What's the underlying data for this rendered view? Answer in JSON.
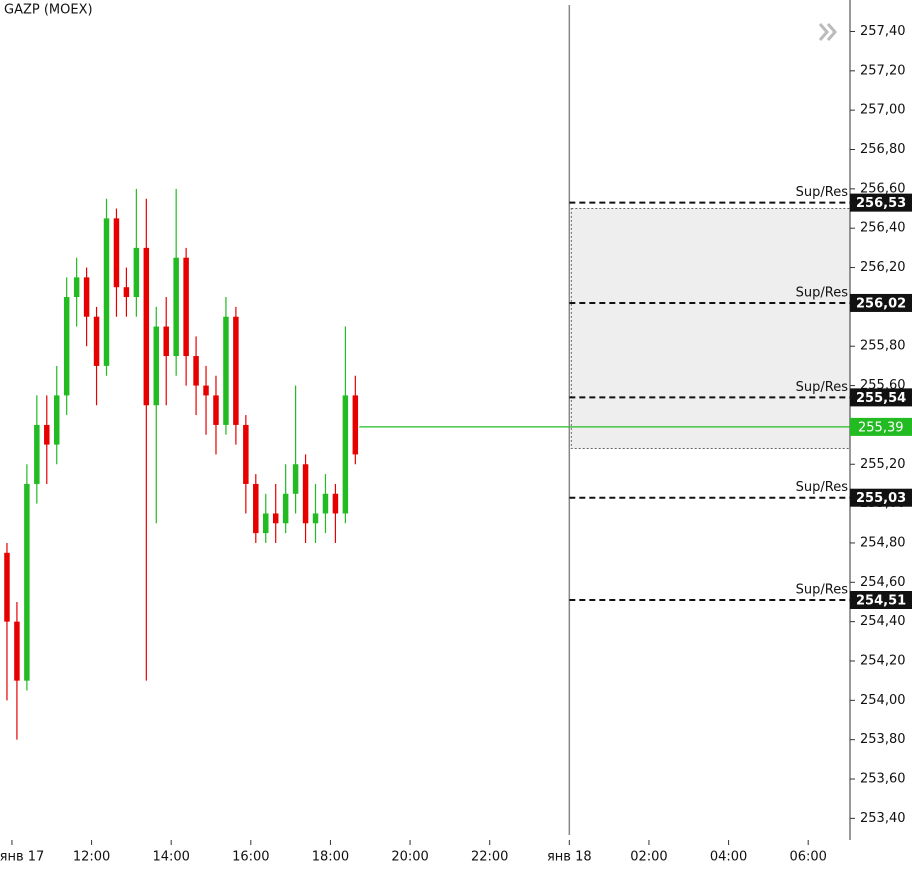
{
  "chart_data": {
    "type": "candlestick",
    "title": "GAZP (MOEX)",
    "x": [
      9.875,
      10.125,
      10.375,
      10.625,
      10.875,
      11.125,
      11.375,
      11.625,
      11.875,
      12.125,
      12.375,
      12.625,
      12.875,
      13.125,
      13.375,
      13.625,
      13.875,
      14.125,
      14.375,
      14.625,
      14.875,
      15.125,
      15.375,
      15.625,
      15.875,
      16.125,
      16.375,
      16.625,
      16.875,
      17.125,
      17.375,
      17.625,
      17.875,
      18.125,
      18.375,
      18.625
    ],
    "open": [
      254.75,
      254.4,
      254.1,
      255.1,
      255.4,
      255.3,
      255.55,
      256.05,
      256.15,
      255.95,
      255.7,
      256.45,
      256.1,
      256.05,
      256.3,
      255.5,
      255.9,
      255.75,
      256.25,
      255.75,
      255.6,
      255.55,
      255.4,
      255.95,
      255.4,
      255.1,
      254.85,
      254.95,
      254.9,
      255.05,
      255.2,
      254.9,
      254.95,
      255.05,
      254.95,
      255.55
    ],
    "high": [
      254.8,
      254.5,
      255.2,
      255.55,
      255.55,
      255.7,
      256.15,
      256.25,
      256.2,
      256.0,
      256.55,
      256.5,
      256.2,
      256.6,
      256.55,
      256.0,
      256.05,
      256.6,
      256.3,
      255.85,
      255.7,
      255.65,
      256.05,
      256.0,
      255.45,
      255.15,
      255.05,
      255.1,
      255.2,
      255.6,
      255.25,
      255.1,
      255.15,
      255.1,
      255.9,
      255.65
    ],
    "low": [
      254.0,
      253.8,
      254.05,
      255.0,
      255.1,
      255.2,
      255.45,
      255.9,
      255.8,
      255.5,
      255.65,
      255.95,
      255.95,
      255.95,
      254.1,
      254.9,
      255.5,
      255.65,
      255.6,
      255.45,
      255.35,
      255.25,
      255.35,
      255.3,
      254.95,
      254.8,
      254.8,
      254.8,
      254.85,
      254.95,
      254.8,
      254.8,
      254.85,
      254.8,
      254.9,
      255.2
    ],
    "close": [
      254.4,
      254.1,
      255.1,
      255.4,
      255.3,
      255.55,
      256.05,
      256.15,
      255.95,
      255.7,
      256.45,
      256.1,
      256.05,
      256.3,
      255.5,
      255.9,
      255.75,
      256.25,
      255.75,
      255.6,
      255.55,
      255.4,
      255.95,
      255.4,
      255.1,
      254.85,
      254.95,
      254.9,
      255.05,
      255.2,
      254.9,
      254.95,
      255.05,
      254.95,
      255.55,
      255.25
    ],
    "up_color": "#22bb22",
    "down_color": "#e60000",
    "xlim": [
      9.7,
      31.05
    ],
    "ylim": [
      253.29,
      257.56
    ],
    "xticks": [
      {
        "value": 10,
        "label": "янв 17"
      },
      {
        "value": 12,
        "label": "12:00"
      },
      {
        "value": 14,
        "label": "14:00"
      },
      {
        "value": 16,
        "label": "16:00"
      },
      {
        "value": 18,
        "label": "18:00"
      },
      {
        "value": 20,
        "label": "20:00"
      },
      {
        "value": 22,
        "label": "22:00"
      },
      {
        "value": 24,
        "label": "янв 18"
      },
      {
        "value": 26,
        "label": "02:00"
      },
      {
        "value": 28,
        "label": "04:00"
      },
      {
        "value": 30,
        "label": "06:00"
      }
    ],
    "yticks": [
      {
        "value": 257.4,
        "label": "257,40"
      },
      {
        "value": 257.2,
        "label": "257,20"
      },
      {
        "value": 257.0,
        "label": "257,00"
      },
      {
        "value": 256.8,
        "label": "256,80"
      },
      {
        "value": 256.6,
        "label": "256,60"
      },
      {
        "value": 256.4,
        "label": "256,40"
      },
      {
        "value": 256.2,
        "label": "256,20"
      },
      {
        "value": 256.0,
        "label": "256,00"
      },
      {
        "value": 255.8,
        "label": "255,80"
      },
      {
        "value": 255.6,
        "label": "255,60"
      },
      {
        "value": 255.4,
        "label": "255,40"
      },
      {
        "value": 255.2,
        "label": "255,20"
      },
      {
        "value": 255.0,
        "label": "255,00"
      },
      {
        "value": 254.8,
        "label": "254,80"
      },
      {
        "value": 254.6,
        "label": "254,60"
      },
      {
        "value": 254.4,
        "label": "254,40"
      },
      {
        "value": 254.2,
        "label": "254,20"
      },
      {
        "value": 254.0,
        "label": "254,00"
      },
      {
        "value": 253.8,
        "label": "253,80"
      },
      {
        "value": 253.6,
        "label": "253,60"
      },
      {
        "value": 253.4,
        "label": "253,40"
      }
    ],
    "session_break": 24,
    "zone": [
      256.5,
      255.28
    ],
    "level_name": "Sup/Res",
    "levels": [
      256.53,
      256.02,
      255.54,
      255.03,
      254.51
    ],
    "level_labels": [
      "256,53",
      "256,02",
      "255,54",
      "255,03",
      "254,51"
    ],
    "last": 255.39,
    "last_label": "255,39",
    "last_color": "#22bb22"
  }
}
